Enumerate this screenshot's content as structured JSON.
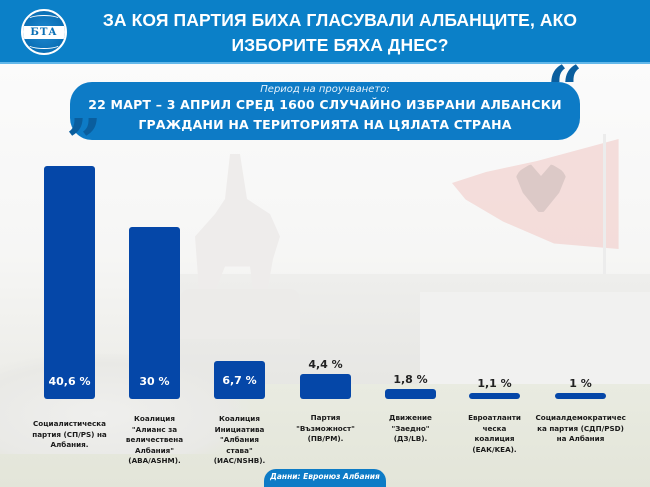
{
  "header": {
    "logo_text": "БТА",
    "title_line1": "ЗА КОЯ ПАРТИЯ БИХА ГЛАСУВАЛИ АЛБАНЦИТЕ, АКО",
    "title_line2": "ИЗБОРИТЕ БЯХА ДНЕС?",
    "background_color": "#0b80c8"
  },
  "banner": {
    "period_label": "Период на проучването:",
    "line1": "22 МАРТ – 3 АПРИЛ СРЕД 1600 СЛУЧАЙНО ИЗБРАНИ АЛБАНСКИ",
    "line2": "ГРАЖДАНИ НА ТЕРИТОРИЯТА НА ЦЯЛАТА СТРАНА",
    "open_quote": "“",
    "close_quote": "”"
  },
  "chart_data": {
    "type": "bar",
    "title": "За коя партия биха гласували албанците, ако изборите бяха днес?",
    "subtitle": "Период на проучването: 22 март – 3 април сред 1600 случайно избрани албански граждани на територията на цялата страна",
    "categories": [
      "Социалистическа партия (СП/PS) на Албания.",
      "Коалиция \"Алианс за величествена Албания\" (АВА/ASHM).",
      "Коалиция Инициатива \"Албания става\" (ИАС/NSHB).",
      "Партия \"Възможност\" (ПВ/PM).",
      "Движение \"Заедно\" (ДЗ/LB).",
      "Евроатлантическа коалиция (ЕАК/KEA).",
      "Социалдемократическа партия (СДП/PSD) на Албания"
    ],
    "values": [
      40.6,
      30,
      6.7,
      4.4,
      1.8,
      1.1,
      1
    ],
    "value_labels": [
      "40,6 %",
      "30 %",
      "6,7 %",
      "4,4 %",
      "1,8 %",
      "1,1 %",
      "1 %"
    ],
    "unit": "%",
    "xlabel": "",
    "ylabel": "",
    "grid": false,
    "legend": null,
    "source": "Данни: Евронюз Албания",
    "bar_color": "#0547a8"
  },
  "labels": [
    [
      "Социалистическа",
      "партия (СП/PS) на",
      "Албания."
    ],
    [
      "Коалиция",
      "\"Алианс за",
      "величествена",
      "Албания\"",
      "(АВА/ASHM)."
    ],
    [
      "Коалиция",
      "Инициатива",
      "\"Албания",
      "става\"",
      "(ИАС/NSHB)."
    ],
    [
      "Партия",
      "\"Възможност\"",
      "(ПВ/PM)."
    ],
    [
      "Движение",
      "\"Заедно\"",
      "(ДЗ/LB)."
    ],
    [
      "Евроатланти",
      "ческа",
      "коалиция",
      "(ЕАК/KEA)."
    ],
    [
      "Социалдемократичес",
      "ка партия (СДП/PSD)",
      "на Албания"
    ]
  ],
  "source": {
    "text": "Данни: Евронюз Албания"
  }
}
